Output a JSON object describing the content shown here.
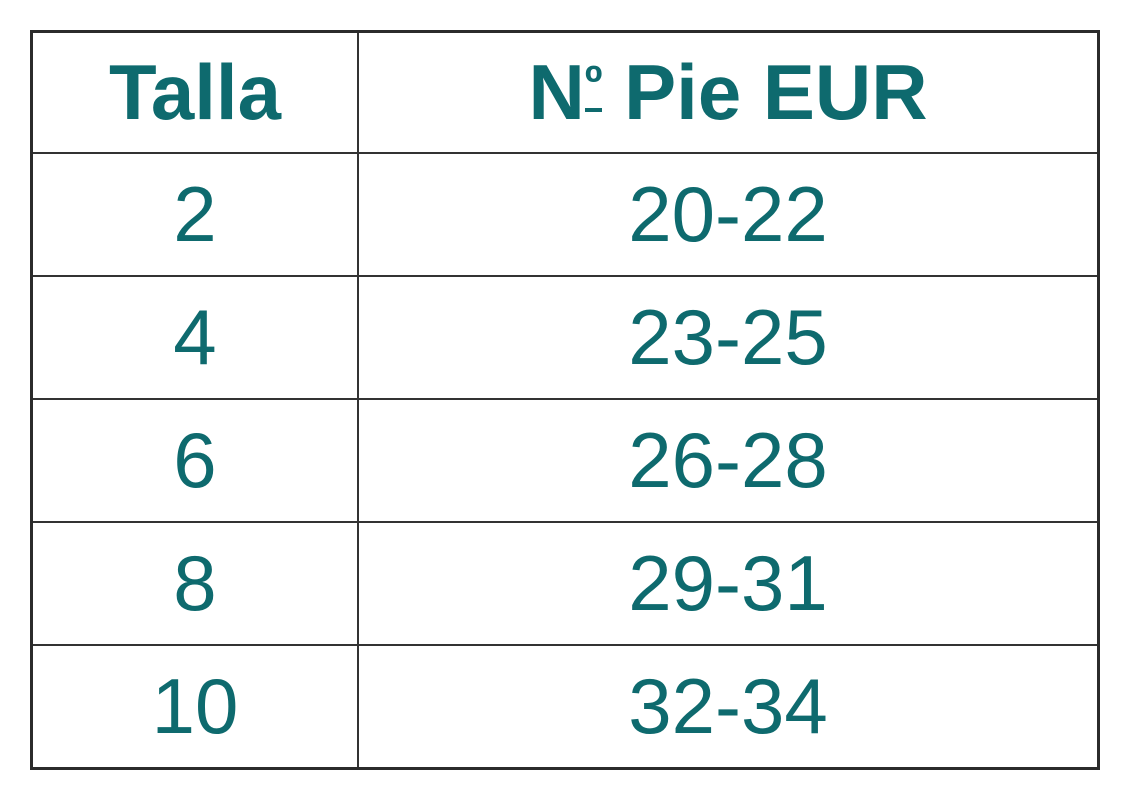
{
  "page": {
    "background": "#ffffff"
  },
  "table": {
    "columns": [
      {
        "key": "talla",
        "label": "Talla"
      },
      {
        "key": "pie_eur",
        "label": "Nº Pie EUR"
      }
    ],
    "rows": [
      {
        "talla": "2",
        "pie_eur": "20-22"
      },
      {
        "talla": "4",
        "pie_eur": "23-25"
      },
      {
        "talla": "6",
        "pie_eur": "26-28"
      },
      {
        "talla": "8",
        "pie_eur": "29-31"
      },
      {
        "talla": "10",
        "pie_eur": "32-34"
      }
    ],
    "colors": {
      "text": "#0e6a6e",
      "border_inner": "#333333",
      "border_outer": "#2b2b2b",
      "cell_background": "#ffffff"
    }
  }
}
